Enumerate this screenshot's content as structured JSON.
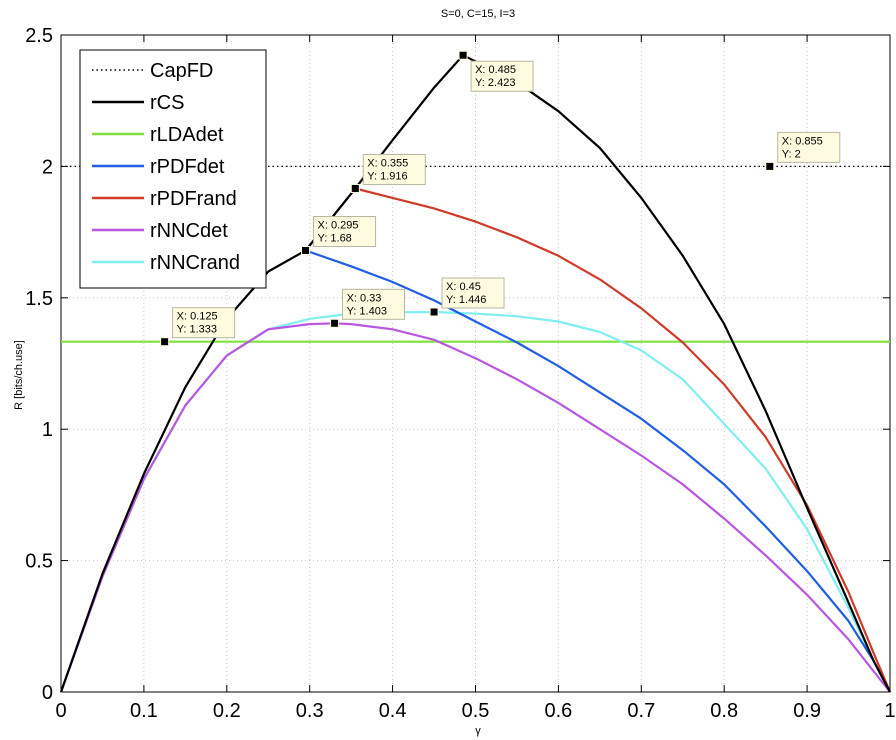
{
  "chart_data": {
    "type": "line",
    "title": "S=0, C=15, I=3",
    "xlabel": "γ",
    "ylabel": "R [bits/ch.use]",
    "xlim": [
      0,
      1
    ],
    "ylim": [
      0,
      2.5
    ],
    "xticks": [
      0,
      0.1,
      0.2,
      0.3,
      0.4,
      0.5,
      0.6,
      0.7,
      0.8,
      0.9,
      1
    ],
    "xtick_labels": [
      "0",
      "0.1",
      "0.2",
      "0.3",
      "0.4",
      "0.5",
      "0.6",
      "0.7",
      "0.8",
      "0.9",
      "1"
    ],
    "yticks": [
      0,
      0.5,
      1,
      1.5,
      2,
      2.5
    ],
    "ytick_labels": [
      "0",
      "0.5",
      "1",
      "1.5",
      "2",
      "2.5"
    ],
    "grid": true,
    "legend_position": "top-left",
    "series": [
      {
        "name": "CapFD",
        "color": "#000000",
        "style": "dotted",
        "x": [
          0,
          1
        ],
        "y": [
          2,
          2
        ]
      },
      {
        "name": "rCS",
        "color": "#000000",
        "style": "solid",
        "x": [
          0,
          0.05,
          0.1,
          0.15,
          0.2,
          0.25,
          0.295,
          0.355,
          0.4,
          0.45,
          0.485,
          0.55,
          0.6,
          0.65,
          0.7,
          0.75,
          0.8,
          0.85,
          0.9,
          0.95,
          0.98,
          1
        ],
        "y": [
          0,
          0.45,
          0.83,
          1.16,
          1.42,
          1.6,
          1.68,
          1.916,
          2.1,
          2.3,
          2.423,
          2.32,
          2.21,
          2.07,
          1.88,
          1.66,
          1.4,
          1.07,
          0.7,
          0.34,
          0.12,
          0
        ]
      },
      {
        "name": "rLDAdet",
        "color": "#7fe03a",
        "style": "solid",
        "x": [
          0,
          1
        ],
        "y": [
          1.333,
          1.333
        ]
      },
      {
        "name": "rPDFdet",
        "color": "#1f5fe0",
        "style": "solid",
        "x": [
          0.295,
          0.35,
          0.4,
          0.45,
          0.5,
          0.55,
          0.6,
          0.65,
          0.7,
          0.75,
          0.8,
          0.85,
          0.9,
          0.95,
          0.98,
          1
        ],
        "y": [
          1.68,
          1.62,
          1.56,
          1.49,
          1.41,
          1.33,
          1.24,
          1.14,
          1.04,
          0.92,
          0.79,
          0.63,
          0.46,
          0.27,
          0.12,
          0
        ]
      },
      {
        "name": "rPDFrand",
        "color": "#d03a2a",
        "style": "solid",
        "x": [
          0.355,
          0.4,
          0.45,
          0.5,
          0.55,
          0.6,
          0.65,
          0.7,
          0.75,
          0.8,
          0.85,
          0.9,
          0.95,
          0.98,
          1
        ],
        "y": [
          1.916,
          1.88,
          1.84,
          1.79,
          1.73,
          1.66,
          1.57,
          1.46,
          1.33,
          1.17,
          0.97,
          0.71,
          0.38,
          0.15,
          0
        ]
      },
      {
        "name": "rNNCdet",
        "color": "#b857e0",
        "style": "solid",
        "x": [
          0,
          0.05,
          0.1,
          0.15,
          0.2,
          0.25,
          0.3,
          0.33,
          0.35,
          0.4,
          0.45,
          0.5,
          0.55,
          0.6,
          0.65,
          0.7,
          0.75,
          0.8,
          0.85,
          0.9,
          0.95,
          0.98,
          1
        ],
        "y": [
          0,
          0.44,
          0.81,
          1.09,
          1.28,
          1.38,
          1.4,
          1.403,
          1.4,
          1.38,
          1.34,
          1.27,
          1.19,
          1.1,
          1.0,
          0.9,
          0.79,
          0.66,
          0.52,
          0.37,
          0.2,
          0.08,
          0
        ]
      },
      {
        "name": "rNNCrand",
        "color": "#7fefef",
        "style": "solid",
        "x": [
          0,
          0.05,
          0.1,
          0.15,
          0.2,
          0.25,
          0.3,
          0.35,
          0.4,
          0.45,
          0.5,
          0.55,
          0.6,
          0.65,
          0.7,
          0.75,
          0.8,
          0.85,
          0.9,
          0.95,
          0.98,
          1
        ],
        "y": [
          0,
          0.44,
          0.81,
          1.09,
          1.28,
          1.38,
          1.42,
          1.44,
          1.445,
          1.446,
          1.44,
          1.43,
          1.41,
          1.37,
          1.3,
          1.19,
          1.02,
          0.85,
          0.62,
          0.32,
          0.12,
          0
        ]
      }
    ],
    "datatips": [
      {
        "x": 0.125,
        "y": 1.333,
        "lines": [
          "X: 0.125",
          "Y: 1.333"
        ],
        "side": "top-right"
      },
      {
        "x": 0.295,
        "y": 1.68,
        "lines": [
          "X: 0.295",
          "Y: 1.68"
        ],
        "side": "top-right"
      },
      {
        "x": 0.33,
        "y": 1.403,
        "lines": [
          "X: 0.33",
          "Y: 1.403"
        ],
        "side": "top-right"
      },
      {
        "x": 0.355,
        "y": 1.916,
        "lines": [
          "X: 0.355",
          "Y: 1.916"
        ],
        "side": "top-right"
      },
      {
        "x": 0.45,
        "y": 1.446,
        "lines": [
          "X: 0.45",
          "Y: 1.446"
        ],
        "side": "top-right"
      },
      {
        "x": 0.485,
        "y": 2.423,
        "lines": [
          "X: 0.485",
          "Y: 2.423"
        ],
        "side": "bottom-right"
      },
      {
        "x": 0.855,
        "y": 2,
        "lines": [
          "X: 0.855",
          "Y: 2"
        ],
        "side": "top-right"
      }
    ]
  }
}
